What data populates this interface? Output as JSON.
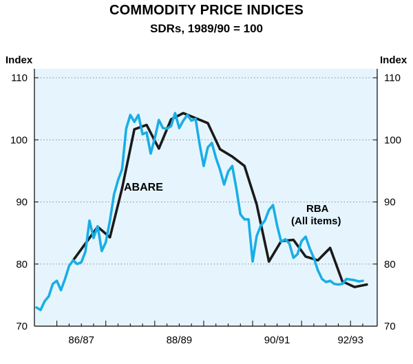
{
  "chart_data": {
    "type": "line",
    "title": "COMMODITY PRICE INDICES",
    "subtitle": "SDRs, 1989/90 = 100",
    "ylabel_left": "Index",
    "ylabel_right": "Index",
    "ylim": [
      70,
      112
    ],
    "yticks": [
      70,
      80,
      90,
      100,
      110
    ],
    "ytick_labels": [
      "70",
      "80",
      "90",
      "100",
      "110"
    ],
    "x_index_range": [
      0,
      80
    ],
    "x_tick_labels": [
      {
        "label": "86/87",
        "center_index": 11
      },
      {
        "label": "88/89",
        "center_index": 35
      },
      {
        "label": "90/91",
        "center_index": 59
      },
      {
        "label": "92/93",
        "center_index": 77
      }
    ],
    "gridlines": "dotted horizontal at each tick",
    "colors": {
      "abare": "#1a1a1a",
      "rba": "#19aee6",
      "background": "#e6f5fd",
      "grid": "#7a8a96"
    },
    "series": [
      {
        "name": "ABARE",
        "label": "ABARE",
        "frequency": "quarterly",
        "color": "#1a1a1a",
        "x": [
          9,
          12,
          15,
          18,
          21,
          24,
          27,
          30,
          33,
          36,
          39,
          42,
          45,
          48,
          51,
          54,
          57,
          60,
          63,
          66,
          69,
          72,
          75,
          78,
          81
        ],
        "values": [
          80.6,
          83.3,
          86.0,
          84.3,
          92.2,
          101.7,
          102.4,
          98.6,
          103.3,
          104.3,
          103.5,
          102.7,
          98.5,
          97.3,
          95.8,
          89.6,
          80.4,
          83.7,
          83.9,
          81.2,
          80.6,
          82.6,
          77.2,
          76.3,
          76.7
        ]
      },
      {
        "name": "RBA (All items)",
        "label_line1": "RBA",
        "label_line2": "(All items)",
        "frequency": "monthly",
        "color": "#19aee6",
        "x": [
          0,
          1,
          2,
          3,
          4,
          5,
          6,
          7,
          8,
          9,
          10,
          11,
          12,
          13,
          14,
          15,
          16,
          17,
          18,
          19,
          20,
          21,
          22,
          23,
          24,
          25,
          26,
          27,
          28,
          29,
          30,
          31,
          32,
          33,
          34,
          35,
          36,
          37,
          38,
          39,
          40,
          41,
          42,
          43,
          44,
          45,
          46,
          47,
          48,
          49,
          50,
          51,
          52,
          53,
          54,
          55,
          56,
          57,
          58,
          59,
          60,
          61,
          62,
          63,
          64,
          65,
          66,
          67,
          68,
          69,
          70,
          71,
          72,
          73,
          74,
          75,
          76,
          77,
          78,
          79,
          80
        ],
        "values": [
          73.0,
          72.6,
          74.0,
          74.8,
          76.8,
          77.3,
          75.8,
          77.6,
          79.7,
          80.6,
          80.0,
          80.3,
          82.0,
          87.0,
          84.2,
          86.1,
          82.1,
          83.5,
          87.0,
          91.2,
          93.5,
          95.3,
          101.8,
          104.0,
          102.9,
          104.0,
          100.9,
          101.2,
          97.8,
          100.2,
          103.2,
          101.9,
          101.8,
          102.2,
          104.3,
          101.9,
          103.1,
          104.0,
          103.1,
          103.4,
          99.3,
          95.8,
          98.8,
          99.5,
          97.1,
          95.2,
          92.8,
          94.9,
          95.8,
          92.2,
          88.0,
          87.2,
          87.2,
          80.4,
          84.5,
          86.2,
          87.0,
          88.7,
          89.5,
          86.2,
          83.6,
          84.0,
          83.3,
          81.0,
          81.6,
          83.7,
          84.4,
          82.5,
          81.0,
          79.0,
          77.6,
          77.1,
          77.3,
          76.8,
          76.7,
          76.8,
          77.6,
          77.5,
          77.4,
          77.2,
          77.3
        ]
      }
    ]
  }
}
